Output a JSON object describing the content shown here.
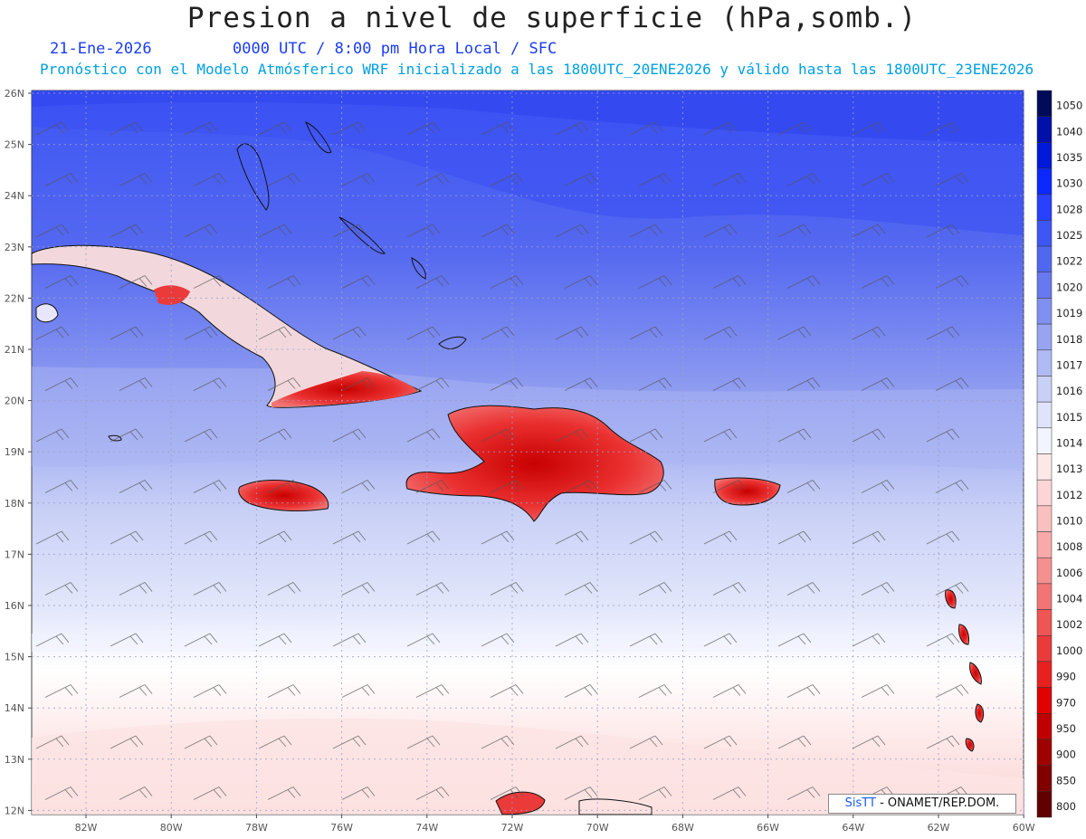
{
  "header": {
    "title": "Presion a nivel de superficie (hPa,somb.)",
    "date": "21-Ene-2026",
    "time_info": "0000 UTC / 8:00 pm Hora Local / SFC",
    "forecast_info": "Pronóstico con el Modelo Atmósferico WRF inicializado a las 1800UTC_20ENE2026 y válido hasta las  1800UTC_23ENE2026"
  },
  "axes": {
    "lat_labels": [
      "26N",
      "25N",
      "24N",
      "23N",
      "22N",
      "21N",
      "20N",
      "19N",
      "18N",
      "17N",
      "16N",
      "15N",
      "14N",
      "13N",
      "12N"
    ],
    "lon_labels": [
      "82W",
      "80W",
      "78W",
      "76W",
      "74W",
      "72W",
      "70W",
      "68W",
      "66W",
      "64W",
      "62W",
      "60W"
    ]
  },
  "legend": {
    "levels": [
      "1050",
      "1040",
      "1035",
      "1030",
      "1028",
      "1025",
      "1022",
      "1020",
      "1019",
      "1018",
      "1017",
      "1016",
      "1015",
      "1014",
      "1013",
      "1012",
      "1010",
      "1008",
      "1006",
      "1004",
      "1002",
      "1000",
      "990",
      "970",
      "950",
      "900",
      "850",
      "800"
    ],
    "colors": [
      "#000c5a",
      "#0010a8",
      "#0018d8",
      "#0a28ff",
      "#2840ff",
      "#3e56f4",
      "#5068f0",
      "#6878ee",
      "#8090f0",
      "#98a4f2",
      "#b0baf4",
      "#c8d0f6",
      "#dfe4fa",
      "#f3f5fe",
      "#fde8e8",
      "#fcd6d6",
      "#fac0c0",
      "#f8aaaa",
      "#f59090",
      "#f27474",
      "#ee5656",
      "#ea3a3a",
      "#e82020",
      "#e00000",
      "#c00000",
      "#a00000",
      "#800000",
      "#600000"
    ]
  },
  "credit": {
    "brand": "SisTT",
    "text": "- ONAMET/REP.DOM."
  }
}
